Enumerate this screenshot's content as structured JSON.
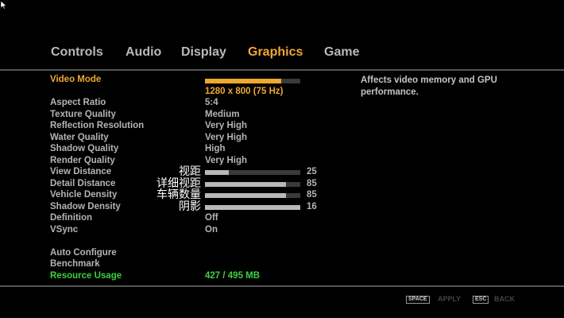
{
  "tabs": [
    {
      "label": "Controls",
      "active": false
    },
    {
      "label": "Audio",
      "active": false
    },
    {
      "label": "Display",
      "active": false
    },
    {
      "label": "Graphics",
      "active": true
    },
    {
      "label": "Game",
      "active": false
    }
  ],
  "settings": {
    "video_mode": {
      "label": "Video Mode",
      "value": "1280 x 800 (75 Hz)",
      "slider_percent": 80
    },
    "aspect_ratio": {
      "label": "Aspect Ratio",
      "value": "5:4"
    },
    "texture_quality": {
      "label": "Texture Quality",
      "value": "Medium"
    },
    "reflection_resolution": {
      "label": "Reflection Resolution",
      "value": "Very High"
    },
    "water_quality": {
      "label": "Water Quality",
      "value": "Very High"
    },
    "shadow_quality": {
      "label": "Shadow Quality",
      "value": "High"
    },
    "render_quality": {
      "label": "Render Quality",
      "value": "Very High"
    },
    "view_distance": {
      "label": "View Distance",
      "value": "25",
      "slider_percent": 25,
      "annotation": "视距"
    },
    "detail_distance": {
      "label": "Detail Distance",
      "value": "85",
      "slider_percent": 85,
      "annotation": "详细视距"
    },
    "vehicle_density": {
      "label": "Vehicle Density",
      "value": "85",
      "slider_percent": 85,
      "annotation": "车辆数量"
    },
    "shadow_density": {
      "label": "Shadow Density",
      "value": "16",
      "slider_percent": 100,
      "annotation": "阴影"
    },
    "definition": {
      "label": "Definition",
      "value": "Off"
    },
    "vsync": {
      "label": "VSync",
      "value": "On"
    }
  },
  "actions": {
    "auto_configure": "Auto Configure",
    "benchmark": "Benchmark"
  },
  "resource_usage": {
    "label": "Resource Usage",
    "value": "427 / 495 MB"
  },
  "description": "Affects video memory and GPU performance.",
  "footer": {
    "apply_key": "SPACE",
    "apply_label": "APPLY",
    "back_key": "ESC",
    "back_label": "BACK"
  },
  "colors": {
    "accent": "#f0a830",
    "resource": "#3fd040"
  }
}
